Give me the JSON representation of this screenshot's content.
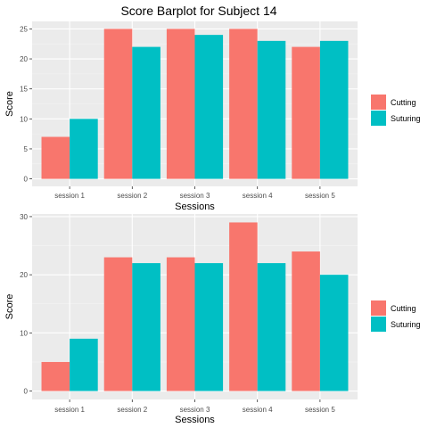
{
  "title": "Score Barplot for Subject  14",
  "colors": {
    "cutting": "#F8766D",
    "suturing": "#00BFC4",
    "panel": "#EBEBEB",
    "grid_major": "#FFFFFF",
    "grid_minor": "#F5F5F5"
  },
  "chart_data": [
    {
      "type": "bar",
      "xlabel": "Sessions",
      "ylabel": "Score",
      "categories": [
        "session 1",
        "session 2",
        "session 3",
        "session 4",
        "session 5"
      ],
      "series": [
        {
          "name": "Cutting",
          "values": [
            7,
            25,
            25,
            25,
            22
          ]
        },
        {
          "name": "Suturing",
          "values": [
            10,
            22,
            24,
            23,
            23
          ]
        }
      ],
      "yticks": [
        0,
        5,
        10,
        15,
        20,
        25
      ],
      "ylim": [
        -1.25,
        26.25
      ],
      "grid": true,
      "legend": "right"
    },
    {
      "type": "bar",
      "xlabel": "Sessions",
      "ylabel": "Score",
      "categories": [
        "session 1",
        "session 2",
        "session 3",
        "session 4",
        "session 5"
      ],
      "series": [
        {
          "name": "Cutting",
          "values": [
            5,
            23,
            23,
            29,
            24
          ]
        },
        {
          "name": "Suturing",
          "values": [
            9,
            22,
            22,
            22,
            20
          ]
        }
      ],
      "yticks": [
        0,
        10,
        20,
        30
      ],
      "ylim": [
        -1.45,
        30.45
      ],
      "grid": true,
      "legend": "right"
    }
  ]
}
